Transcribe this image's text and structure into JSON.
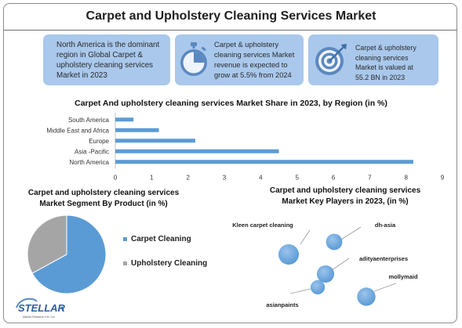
{
  "header": {
    "title": "Carpet and Upholstery Cleaning Services Market"
  },
  "cards": [
    {
      "text_lines": [
        "North America is the dominant",
        "region in Global Carpet &",
        "upholstery cleaning services",
        "Market in 2023"
      ],
      "icon": "none"
    },
    {
      "text_lines": [
        "Carpet & upholstery",
        "cleaning services Market",
        "revenue is expected to",
        "grow at 5.5% from 2024"
      ],
      "icon": "stopwatch-icon"
    },
    {
      "text_lines": [
        "Carpet & upholstery",
        "cleaning services",
        "Market is valued at",
        "55.2 BN in 2023"
      ],
      "icon": "target-icon"
    }
  ],
  "colors": {
    "accent_blue": "#5b9bd5",
    "card_blue": "#a9c8ec",
    "grey": "#a5a5a5"
  },
  "chart_data": [
    {
      "type": "bar",
      "orientation": "horizontal",
      "title": "Carpet And upholstery cleaning services Market Share in 2023, by Region (in %)",
      "categories": [
        "South America",
        "Middle East and Africa",
        "Europe",
        "Asia -Pacific",
        "North America"
      ],
      "values": [
        0.5,
        1.2,
        2.2,
        4.5,
        8.2
      ],
      "xlim": [
        0,
        9
      ],
      "xticks": [
        "0",
        "1",
        "2",
        "3",
        "4",
        "5",
        "6",
        "7",
        "8",
        "9"
      ],
      "grid": false
    },
    {
      "type": "pie",
      "title_lines": [
        "Carpet and upholstery cleaning services",
        "Market Segment By Product (in %)"
      ],
      "labels": [
        "Carpet Cleaning",
        "Upholstery Cleaning"
      ],
      "values": [
        67,
        33
      ],
      "colors": [
        "#5b9bd5",
        "#a5a5a5"
      ],
      "legend": "right"
    },
    {
      "type": "scatter",
      "title_lines": [
        "Carpet and upholstery cleaning services",
        "Market Key Players in 2023, (in %)"
      ],
      "points": [
        {
          "label": "Kleen carpet cleaning",
          "size": 5
        },
        {
          "label": "dh-asia",
          "size": 3
        },
        {
          "label": "adityaenterprises",
          "size": 3.5
        },
        {
          "label": "asianpaints",
          "size": 2
        },
        {
          "label": "mollymaid",
          "size": 4
        }
      ]
    }
  ],
  "logo": {
    "name": "STELLAR",
    "tagline": "Market Research Pvt. Ltd."
  }
}
